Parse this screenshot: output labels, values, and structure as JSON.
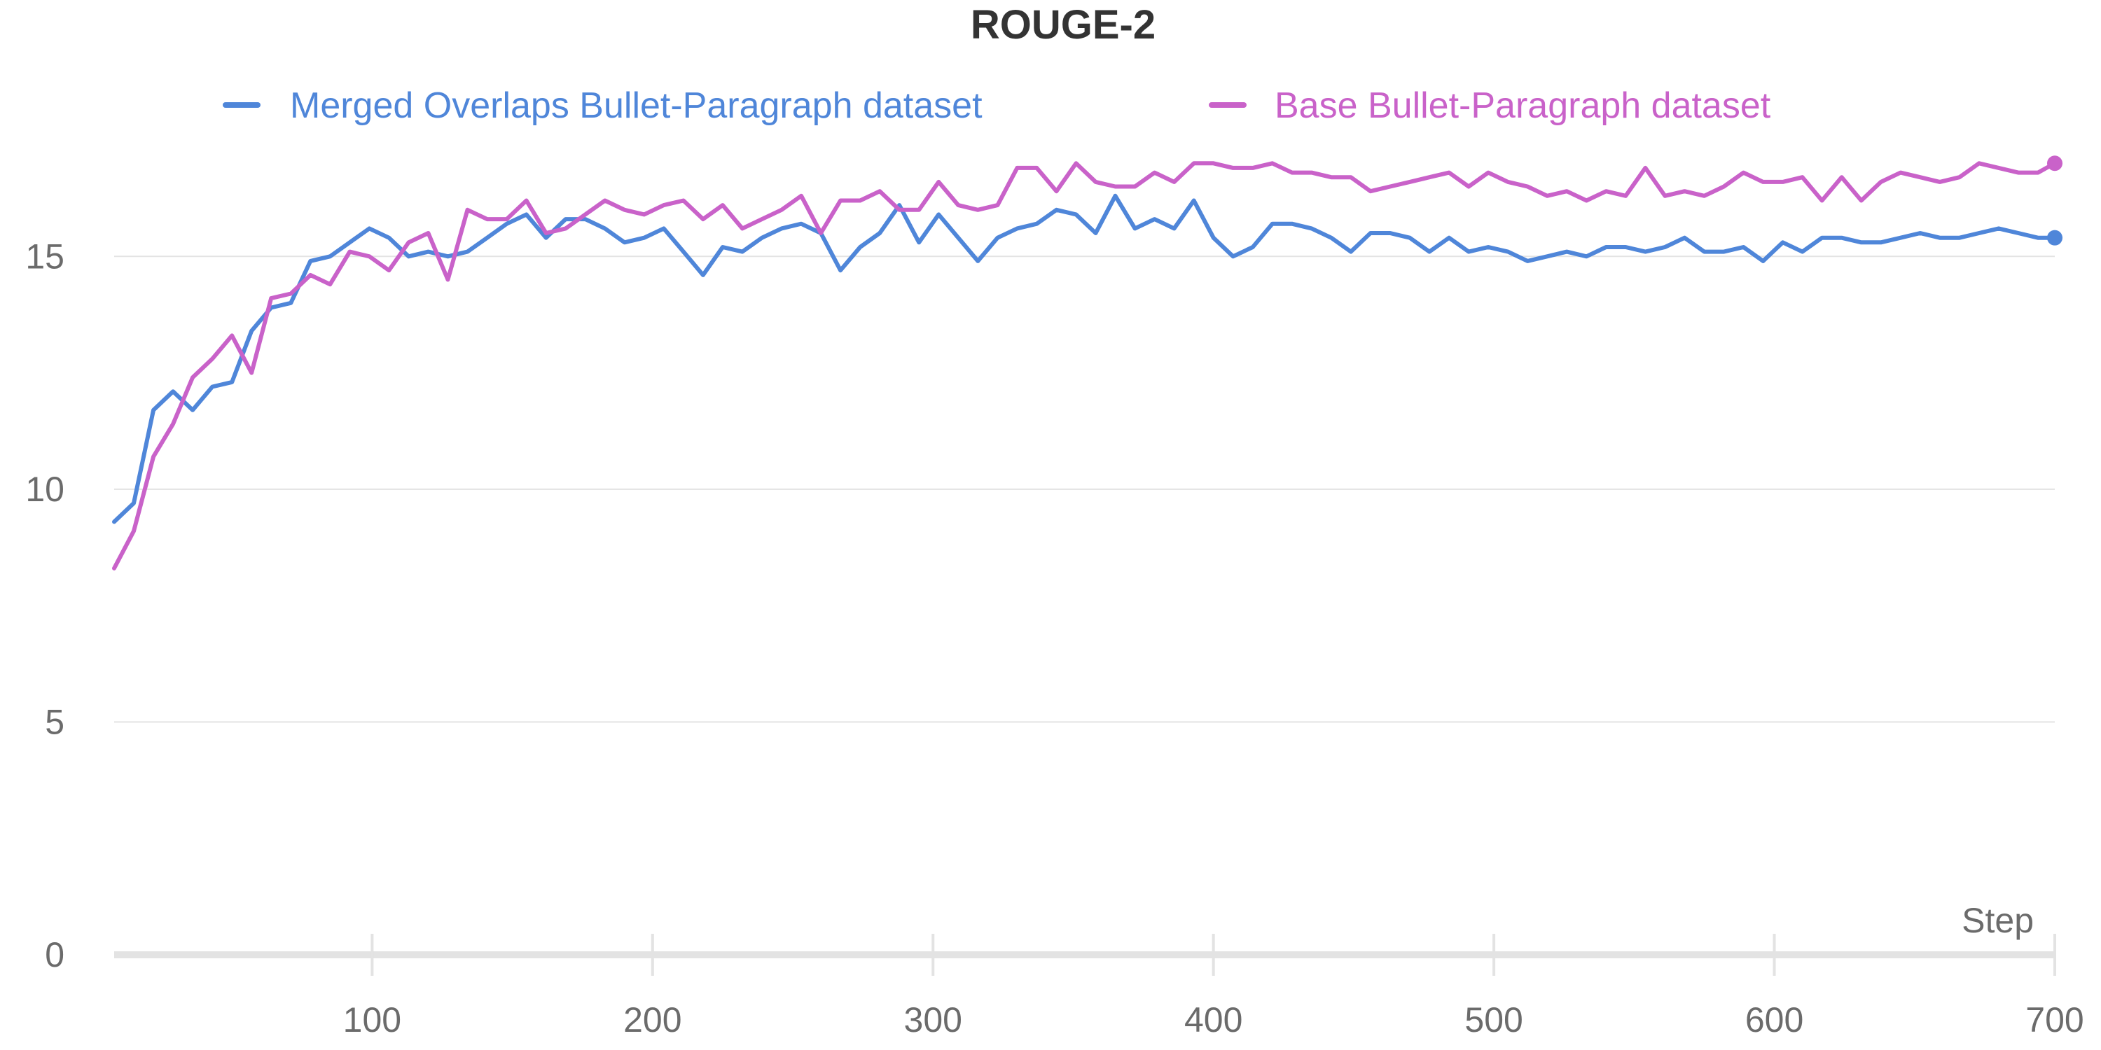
{
  "chart_data": {
    "type": "line",
    "title": "ROUGE-2",
    "xlabel": "Step",
    "ylabel": "",
    "xlim": [
      8,
      700
    ],
    "ylim": [
      0,
      17.5
    ],
    "x_ticks": [
      100,
      200,
      300,
      400,
      500,
      600,
      700
    ],
    "y_ticks": [
      0,
      5,
      10,
      15
    ],
    "grid": "horizontal",
    "legend_position": "top",
    "series": [
      {
        "name": "Merged Overlaps Bullet-Paragraph dataset",
        "color": "#4f86d9",
        "x": [
          8,
          15,
          22,
          29,
          36,
          43,
          50,
          57,
          64,
          71,
          78,
          85,
          92,
          99,
          106,
          113,
          120,
          127,
          134,
          141,
          148,
          155,
          162,
          169,
          176,
          183,
          190,
          197,
          204,
          211,
          218,
          225,
          232,
          239,
          246,
          253,
          260,
          267,
          274,
          281,
          288,
          295,
          302,
          309,
          316,
          323,
          330,
          337,
          344,
          351,
          358,
          365,
          372,
          379,
          386,
          393,
          400,
          407,
          414,
          421,
          428,
          435,
          442,
          449,
          456,
          463,
          470,
          477,
          484,
          491,
          498,
          505,
          512,
          519,
          526,
          533,
          540,
          547,
          554,
          561,
          568,
          575,
          582,
          589,
          596,
          603,
          610,
          617,
          624,
          631,
          638,
          645,
          652,
          659,
          666,
          673,
          680,
          687,
          694,
          700
        ],
        "values": [
          9.3,
          9.7,
          11.7,
          12.1,
          11.7,
          12.2,
          12.3,
          13.4,
          13.9,
          14.0,
          14.9,
          15.0,
          15.3,
          15.6,
          15.4,
          15.0,
          15.1,
          15.0,
          15.1,
          15.4,
          15.7,
          15.9,
          15.4,
          15.8,
          15.8,
          15.6,
          15.3,
          15.4,
          15.6,
          15.1,
          14.6,
          15.2,
          15.1,
          15.4,
          15.6,
          15.7,
          15.5,
          14.7,
          15.2,
          15.5,
          16.1,
          15.3,
          15.9,
          15.4,
          14.9,
          15.4,
          15.6,
          15.7,
          16.0,
          15.9,
          15.5,
          16.3,
          15.6,
          15.8,
          15.6,
          16.2,
          15.4,
          15.0,
          15.2,
          15.7,
          15.7,
          15.6,
          15.4,
          15.1,
          15.5,
          15.5,
          15.4,
          15.1,
          15.4,
          15.1,
          15.2,
          15.1,
          14.9,
          15.0,
          15.1,
          15.0,
          15.2,
          15.2,
          15.1,
          15.2,
          15.4,
          15.1,
          15.1,
          15.2,
          14.9,
          15.3,
          15.1,
          15.4,
          15.4,
          15.3,
          15.3,
          15.4,
          15.5,
          15.4,
          15.4,
          15.5,
          15.6,
          15.5,
          15.4,
          15.4
        ]
      },
      {
        "name": "Base Bullet-Paragraph dataset",
        "color": "#c962c9",
        "x": [
          8,
          15,
          22,
          29,
          36,
          43,
          50,
          57,
          64,
          71,
          78,
          85,
          92,
          99,
          106,
          113,
          120,
          127,
          134,
          141,
          148,
          155,
          162,
          169,
          176,
          183,
          190,
          197,
          204,
          211,
          218,
          225,
          232,
          239,
          246,
          253,
          260,
          267,
          274,
          281,
          288,
          295,
          302,
          309,
          316,
          323,
          330,
          337,
          344,
          351,
          358,
          365,
          372,
          379,
          386,
          393,
          400,
          407,
          414,
          421,
          428,
          435,
          442,
          449,
          456,
          463,
          470,
          477,
          484,
          491,
          498,
          505,
          512,
          519,
          526,
          533,
          540,
          547,
          554,
          561,
          568,
          575,
          582,
          589,
          596,
          603,
          610,
          617,
          624,
          631,
          638,
          645,
          652,
          659,
          666,
          673,
          680,
          687,
          694,
          700
        ],
        "values": [
          8.3,
          9.1,
          10.7,
          11.4,
          12.4,
          12.8,
          13.3,
          12.5,
          14.1,
          14.2,
          14.6,
          14.4,
          15.1,
          15.0,
          14.7,
          15.3,
          15.5,
          14.5,
          16.0,
          15.8,
          15.8,
          16.2,
          15.5,
          15.6,
          15.9,
          16.2,
          16.0,
          15.9,
          16.1,
          16.2,
          15.8,
          16.1,
          15.6,
          15.8,
          16.0,
          16.3,
          15.5,
          16.2,
          16.2,
          16.4,
          16.0,
          16.0,
          16.6,
          16.1,
          16.0,
          16.1,
          16.9,
          16.9,
          16.4,
          17.0,
          16.6,
          16.5,
          16.5,
          16.8,
          16.6,
          17.0,
          17.0,
          16.9,
          16.9,
          17.0,
          16.8,
          16.8,
          16.7,
          16.7,
          16.4,
          16.5,
          16.6,
          16.7,
          16.8,
          16.5,
          16.8,
          16.6,
          16.5,
          16.3,
          16.4,
          16.2,
          16.4,
          16.3,
          16.9,
          16.3,
          16.4,
          16.3,
          16.5,
          16.8,
          16.6,
          16.6,
          16.7,
          16.2,
          16.7,
          16.2,
          16.6,
          16.8,
          16.7,
          16.6,
          16.7,
          17.0,
          16.9,
          16.8,
          16.8,
          17.0
        ]
      }
    ]
  }
}
